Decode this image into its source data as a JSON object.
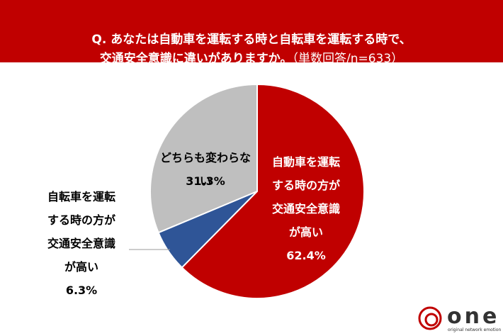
{
  "chart_data": {
    "type": "pie",
    "title": "Q. あなたは自動車を運転する時と自転車を運転する時で、\n交通安全意識に違いがありますか。",
    "subtitle": "（単数回答/n=633）",
    "categories": [
      "自動車を運転\nする時の方が\n交通安全意識\nが高い",
      "自転車を運転\nする時の方が\n交通安全意識\nが高い",
      "どちらも変わらない"
    ],
    "values": [
      62.4,
      6.3,
      31.3
    ],
    "value_labels": [
      "62.4%",
      "6.3%",
      "31.3%"
    ],
    "colors": [
      "#c00000",
      "#2f5597",
      "#bfbfbf"
    ]
  },
  "logo": {
    "name": "one",
    "tagline": "original network emotion"
  }
}
